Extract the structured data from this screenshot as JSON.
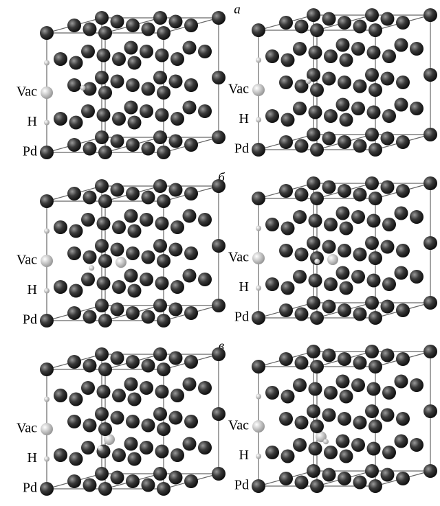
{
  "panels": [
    {
      "label": "а",
      "cells": [
        {
          "vac": "Vac",
          "h": "H",
          "pd": "Pd"
        },
        {
          "vac": "Vac",
          "h": "H",
          "pd": "Pd"
        }
      ]
    },
    {
      "label": "б",
      "cells": [
        {
          "vac": "Vac",
          "h": "H",
          "pd": "Pd"
        },
        {
          "vac": "Vac",
          "h": "H",
          "pd": "Pd"
        }
      ]
    },
    {
      "label": "в",
      "cells": [
        {
          "vac": "Vac",
          "h": "H",
          "pd": "Pd"
        },
        {
          "vac": "Vac",
          "h": "H",
          "pd": "Pd"
        }
      ]
    }
  ]
}
